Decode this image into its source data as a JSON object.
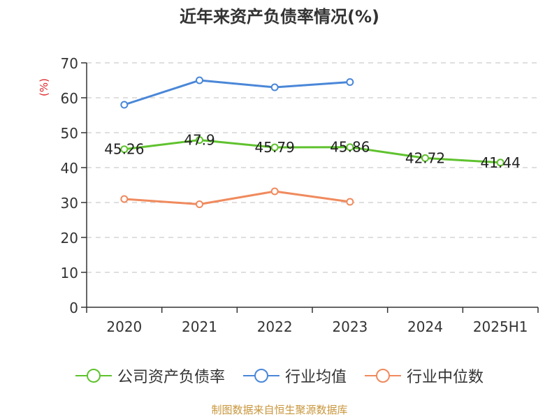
{
  "chart_data": {
    "type": "line",
    "title": "近年来资产负债率情况(%)",
    "ylabel": "(%)",
    "xlabel": "",
    "categories": [
      "2020",
      "2021",
      "2022",
      "2023",
      "2024",
      "2025H1"
    ],
    "ylim": [
      0,
      70
    ],
    "yticks": [
      "0",
      "10",
      "20",
      "30",
      "40",
      "50",
      "60",
      "70"
    ],
    "grid": true,
    "legend_position": "bottom",
    "series": [
      {
        "name": "公司资产负债率",
        "color": "#5fc22e",
        "values": [
          45.26,
          47.9,
          45.79,
          45.86,
          42.72,
          41.44
        ],
        "labels": [
          "45.26",
          "47.9",
          "45.79",
          "45.86",
          "42.72",
          "41.44"
        ]
      },
      {
        "name": "行业均值",
        "color": "#4a87d8",
        "values": [
          58,
          65,
          63,
          64.5,
          null,
          null
        ]
      },
      {
        "name": "行业中位数",
        "color": "#f08a5d",
        "values": [
          31,
          29.5,
          33.2,
          30.2,
          null,
          null
        ]
      }
    ]
  },
  "footer": {
    "source": "制图数据来自恒生聚源数据库"
  }
}
